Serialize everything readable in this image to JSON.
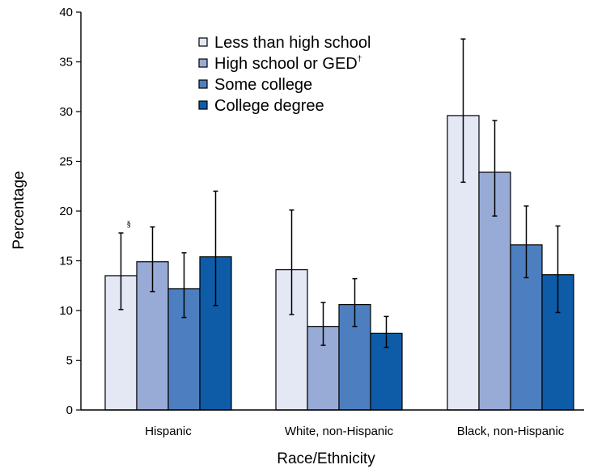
{
  "chart_data": {
    "type": "bar",
    "xlabel": "Race/Ethnicity",
    "ylabel": "Percentage",
    "ylim": [
      0,
      40
    ],
    "yticks": [
      0,
      5,
      10,
      15,
      20,
      25,
      30,
      35,
      40
    ],
    "categories": [
      "Hispanic",
      "White, non-Hispanic",
      "Black, non-Hispanic"
    ],
    "series": [
      {
        "name": "Less than high school",
        "name_sup": "",
        "color": "#e3e8f4",
        "values": [
          13.5,
          14.1,
          29.6
        ],
        "ci_low": [
          10.1,
          9.6,
          22.9
        ],
        "ci_high": [
          17.8,
          20.1,
          37.3
        ]
      },
      {
        "name": "High school or GED",
        "name_sup": "†",
        "color": "#98aad6",
        "values": [
          14.9,
          8.4,
          23.9
        ],
        "ci_low": [
          11.9,
          6.5,
          19.5
        ],
        "ci_high": [
          18.4,
          10.8,
          29.1
        ]
      },
      {
        "name": "Some college",
        "name_sup": "",
        "color": "#4d7fc0",
        "values": [
          12.2,
          10.6,
          16.6
        ],
        "ci_low": [
          9.3,
          8.4,
          13.3
        ],
        "ci_high": [
          15.8,
          13.2,
          20.5
        ]
      },
      {
        "name": "College degree",
        "name_sup": "",
        "color": "#0e5ca8",
        "values": [
          15.4,
          7.7,
          13.6
        ],
        "ci_low": [
          10.5,
          6.3,
          9.8
        ],
        "ci_high": [
          22.0,
          9.4,
          18.5
        ]
      }
    ],
    "annotations": [
      {
        "text": "§",
        "category_index": 0,
        "series_index": 0
      }
    ],
    "legend_position": "top-center",
    "grid": false
  }
}
